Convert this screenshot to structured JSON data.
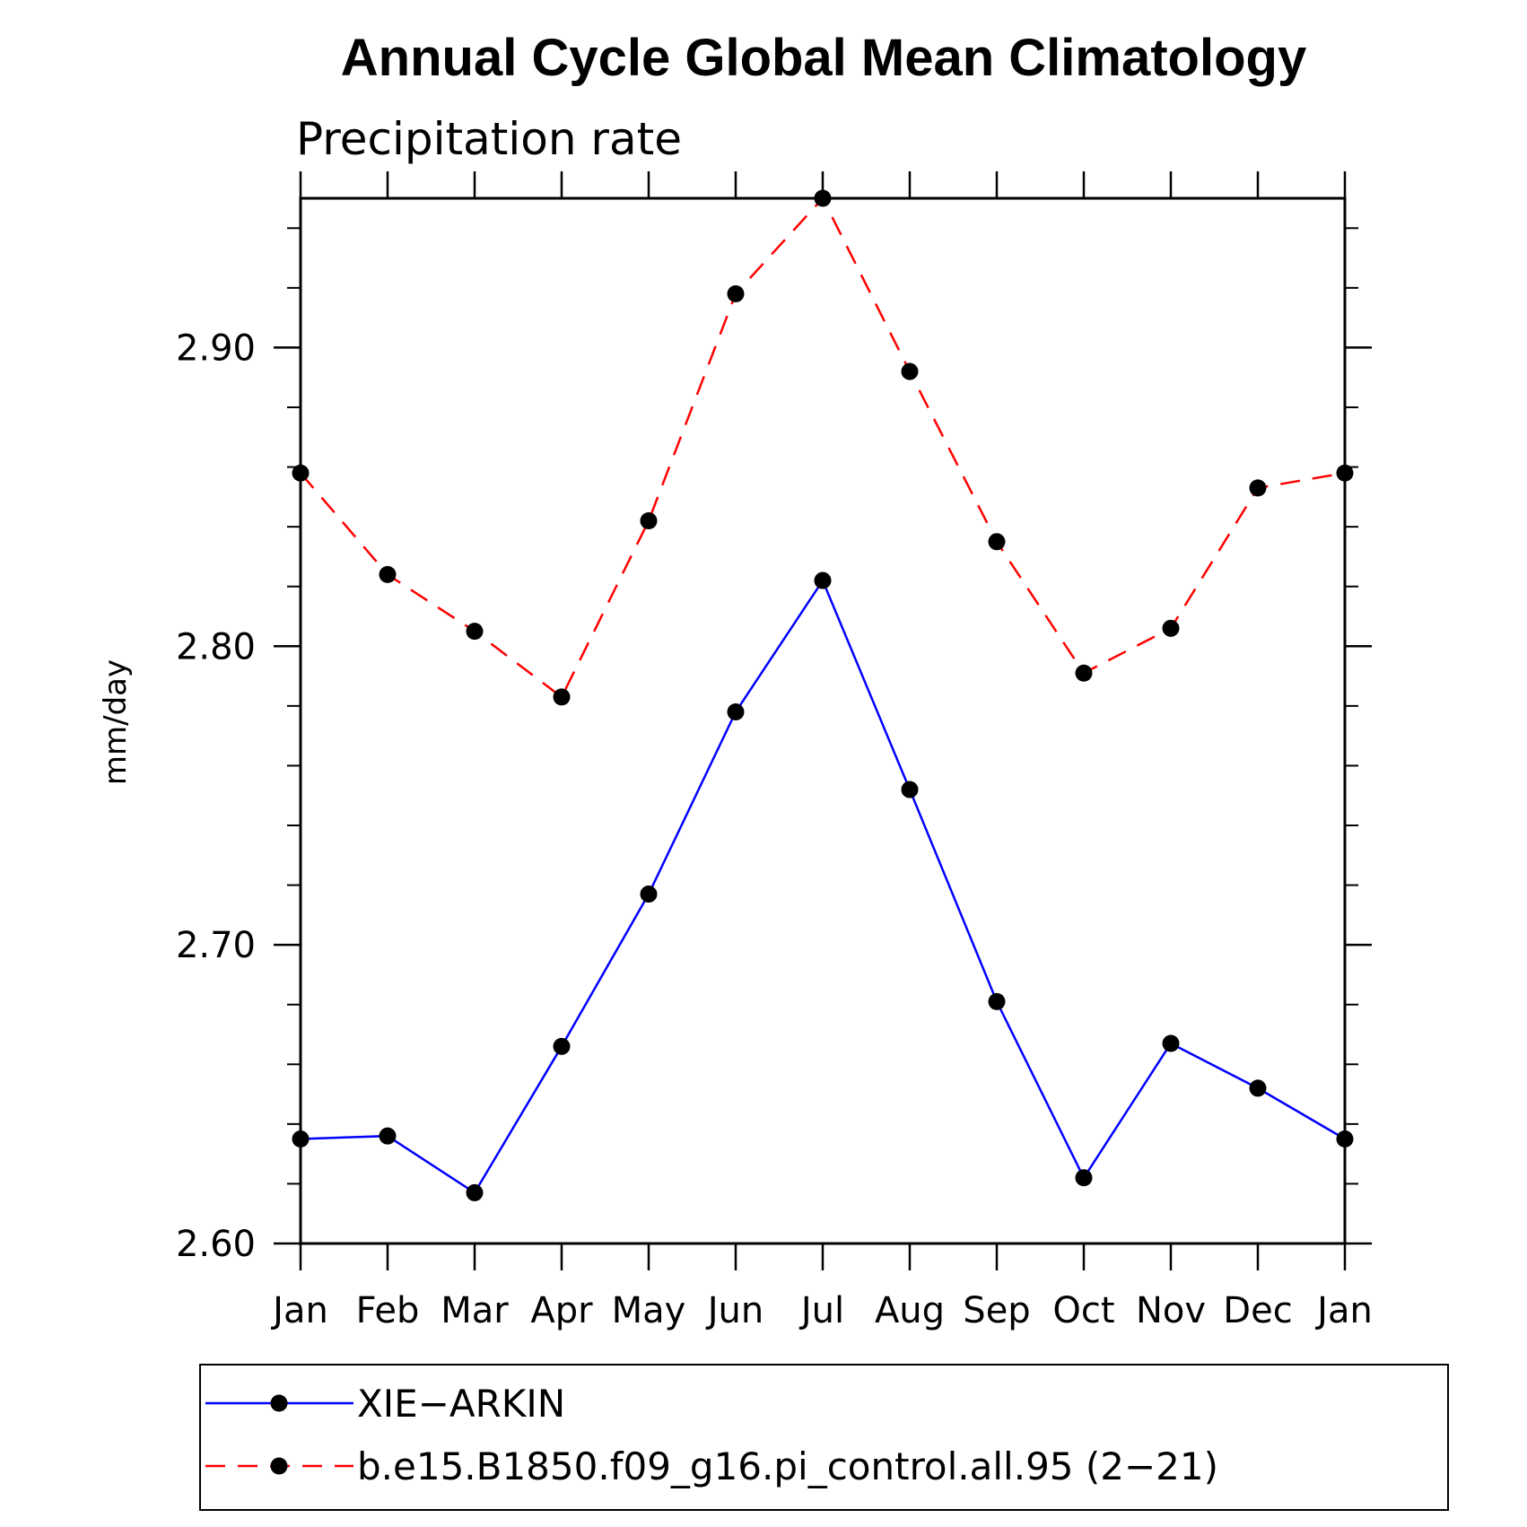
{
  "chart_data": {
    "type": "line",
    "title": "Annual Cycle Global Mean Climatology",
    "subtitle": "Precipitation rate",
    "ylabel": "mm/day",
    "categories": [
      "Jan",
      "Feb",
      "Mar",
      "Apr",
      "May",
      "Jun",
      "Jul",
      "Aug",
      "Sep",
      "Oct",
      "Nov",
      "Dec",
      "Jan"
    ],
    "ylim": [
      2.6,
      2.95
    ],
    "yticks": [
      2.6,
      2.7,
      2.8,
      2.9
    ],
    "ytick_labels": [
      "2.60",
      "2.70",
      "2.80",
      "2.90"
    ],
    "legend_position": "bottom",
    "series": [
      {
        "name": "XIE−ARKIN",
        "color": "#0000ff",
        "line_style": "solid",
        "marker": "filled-circle",
        "values": [
          2.635,
          2.636,
          2.617,
          2.666,
          2.717,
          2.778,
          2.822,
          2.752,
          2.681,
          2.622,
          2.667,
          2.652,
          2.635
        ]
      },
      {
        "name": "b.e15.B1850.f09_g16.pi_control.all.95 (2−21)",
        "color": "#ff0000",
        "line_style": "dashed",
        "marker": "filled-circle",
        "values": [
          2.858,
          2.824,
          2.805,
          2.783,
          2.842,
          2.918,
          2.95,
          2.892,
          2.835,
          2.791,
          2.806,
          2.853,
          2.858
        ]
      }
    ]
  }
}
